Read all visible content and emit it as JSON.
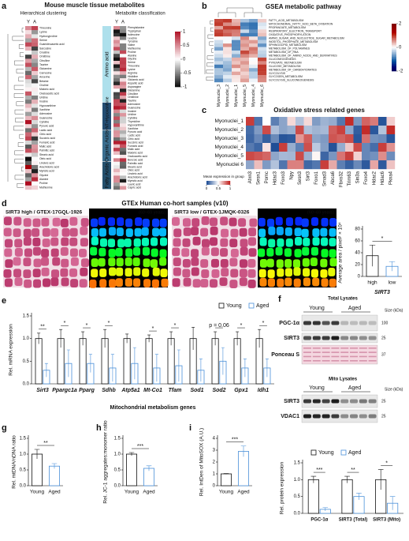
{
  "panel_labels": [
    "a",
    "b",
    "c",
    "d",
    "e",
    "f",
    "g",
    "h",
    "i"
  ],
  "panel_a": {
    "title": "Mouse muscle tissue metabolites",
    "left_heading": "Hierarchical clustering",
    "right_heading": "Metabolite classification",
    "columns": [
      "Y",
      "A"
    ],
    "colorbar_ticks": [
      1,
      0.5,
      0,
      -0.5,
      -1
    ],
    "left_names": [
      "Threonine",
      "Lysine",
      "Hydroxyproline",
      "Serine",
      "Guanidinoacetic acid",
      "Sarcosine",
      "Creatine",
      "Ornithine",
      "Citrulline",
      "Taurine",
      "Glutamine",
      "Carnosine",
      "Anserine",
      "Betaine",
      "Choline",
      "Malonic acid",
      "Oxaloacetic acid",
      "Uridine",
      "Inosine",
      "Hypoxanthine",
      "Xanthine",
      "Adenosine",
      "Guanosine",
      "Cytidine",
      "Pyruvic acid",
      "Lactic acid",
      "Citric acid",
      "Succinic acid",
      "Fumaric acid",
      "Malic acid",
      "Palmitic acid",
      "Stearic acid",
      "Oleic acid",
      "Linoleic acid",
      "Arachidonic acid",
      "Myristic acid",
      "Glycine",
      "Alanine",
      "Proline",
      "Methionine"
    ],
    "categories": [
      {
        "name": "Amino acid",
        "names": [
          "Phenylalanine",
          "Tryptophan",
          "Isoleucine",
          "Leucine",
          "Tyrosine",
          "Valine",
          "Methionine",
          "Proline",
          "Alanine",
          "Glycine",
          "Serine",
          "Threonine",
          "Lysine",
          "Arginine",
          "Histidine",
          "Glutamic acid",
          "Aspartic acid",
          "Asparagine",
          "Glutamine",
          "Citrulline",
          "Ornithine",
          "Taurine"
        ]
      },
      {
        "name": "NS+NT+Hypoxanthine",
        "names": [
          "Adenosine",
          "Guanosine",
          "Inosine",
          "Uridine",
          "Cytidine",
          "Thymidine",
          "Hypoxanthine",
          "Xanthine"
        ]
      },
      {
        "name": "Organic Acids",
        "names": [
          "Pyruvic acid",
          "Lactic acid",
          "Citric acid",
          "Succinic acid",
          "Fumaric acid",
          "Malic acid",
          "Malonic acid",
          "Oxaloacetic acid",
          "Benzoic acid"
        ]
      },
      {
        "name": "Fatty Acids",
        "names": [
          "Palmitic acid",
          "Stearic acid",
          "Oleic acid",
          "Linoleic acid",
          "Arachidonic acid",
          "Myristic acid",
          "Lauric acid",
          "Capric acid"
        ]
      }
    ]
  },
  "panel_b": {
    "title": "GSEA metabolic pathway",
    "pathways": [
      "FATTY_ACID_METABOLISM",
      "MITOCHONDRIAL_FATTY_ACID_BETA_OXIDATION",
      "PROPANOATE_METABOLISM",
      "RESPIRATORY_ELECTRON_TRANSPORT",
      "OXIDATIVE_PHOSPHORYLATION",
      "AMINO_SUGAR_AND_NUCLEOTIDE_SUGAR_METABOLISM",
      "INOSITOL_PHOSPHATE_METABOLISM",
      "SPHINGOLIPID_METABOLISM",
      "METABOLISM_OF_POLYAMINES",
      "METABOLISM_OF_RNA",
      "METABOLISM_OF_AMINO_ACIDS_AND_DERIVATIVES",
      "GLUCONEOGENESIS",
      "PYRUVATE_METABOLISM",
      "GLUCOSE_METABOLISM",
      "METABOLISM_OF_CARBOHYDRATES",
      "GLYCOLYSIS",
      "GLYCOGEN_METABOLISM",
      "GLYCOLYSIS_GLUCONEOGENESIS"
    ],
    "columns": [
      "Myonuclei_3",
      "Myonuclei_2",
      "Myonuclei_1",
      "Myonuclei_5",
      "Myonuclei_4",
      "Myonuclei_6"
    ],
    "colorbar_ticks": [
      2,
      0,
      -2
    ]
  },
  "panel_c": {
    "title": "Oxidative stress related genes",
    "rows": [
      "Myonuclei_1",
      "Myonuclei_2",
      "Myonuclei_3",
      "Myonuclei_4",
      "Myonuclei_5",
      "Myonuclei 6"
    ],
    "genes": [
      "Atxn3",
      "Sesn1",
      "Pomc",
      "Hdac3",
      "Foxo3",
      "Npy",
      "Sesn3",
      "Sirt3",
      "Foxo1",
      "Smad3",
      "Abca6",
      "Fbxo32",
      "Trim63",
      "Sin3a",
      "Foxo4",
      "Hdac2",
      "Hdac6",
      "Pkna4"
    ],
    "legend_title": "Mean expression in group",
    "colorbar_ticks": [
      0,
      0.5,
      1.0
    ]
  },
  "panel_d": {
    "title": "GTEx Human co-hort samples (v10)",
    "high_caption": "SIRT3 high / GTEX-17GQL-1926",
    "low_caption": "SIRT3 low / GTEX-1JMQK-0326",
    "age": "(60~69 years)"
  },
  "panel_f": {
    "total_title": "Total Lysates",
    "mito_title": "Mito Lysates",
    "groups": [
      "Young",
      "Aged"
    ],
    "size_heading": "Size (kDa)",
    "total_rows": [
      {
        "name": "PGC-1α",
        "size": "100"
      },
      {
        "name": "SIRT3",
        "size": "25"
      },
      {
        "name": "Ponceau S",
        "size": "37"
      }
    ],
    "mito_rows": [
      {
        "name": "SIRT3",
        "size": "25"
      },
      {
        "name": "VDAC1",
        "size": "25"
      }
    ]
  },
  "chart_data": [
    {
      "type": "bar",
      "ylabel": "Average area / pixel² × 10⁴",
      "categories": [
        "high",
        "low"
      ],
      "xlabel": "SIRT3",
      "values": [
        35,
        17
      ],
      "errors": [
        18,
        8
      ],
      "colors": [
        "#111111",
        "#4a90d9"
      ],
      "ylim": [
        0,
        80
      ],
      "yticks": [
        0,
        20,
        40,
        60,
        80
      ],
      "significance": "*"
    },
    {
      "type": "bar",
      "ylabel": "Rel. mRNA expression",
      "xlabel": "Mitochondrial metabolism genes",
      "categories": [
        "Sirt3",
        "Ppargc1a",
        "Pparg",
        "Sdhb",
        "Atp5a1",
        "Mt-Co1",
        "Tfam",
        "Sod1",
        "Sod2",
        "Gpx1",
        "Idh1"
      ],
      "category_style": "italic",
      "series": [
        {
          "name": "Young",
          "color": "#111111",
          "values": [
            1.0,
            1.0,
            1.0,
            1.0,
            1.0,
            1.0,
            1.0,
            1.0,
            1.0,
            1.0,
            1.0
          ],
          "errors": [
            0.12,
            0.2,
            0.15,
            0.2,
            0.1,
            0.08,
            0.15,
            0.25,
            0.15,
            0.15,
            0.2
          ]
        },
        {
          "name": "Aged",
          "color": "#4a90d9",
          "values": [
            0.3,
            0.45,
            0.45,
            0.35,
            0.45,
            0.35,
            0.4,
            0.3,
            0.5,
            0.35,
            0.35
          ],
          "errors": [
            0.15,
            0.3,
            0.2,
            0.3,
            0.35,
            0.3,
            0.35,
            0.25,
            0.3,
            0.2,
            0.2
          ]
        }
      ],
      "ylim": [
        0,
        1.5
      ],
      "yticks": [
        {
          "value": 0,
          "label": "0.0"
        },
        0.5,
        {
          "value": 1,
          "label": "1.0"
        },
        1.5
      ],
      "significance": [
        "**",
        "*",
        "*",
        "*",
        null,
        "*",
        "*",
        null,
        "p = 0.06",
        "*",
        "*"
      ],
      "legend": "top-right"
    },
    {
      "type": "bar",
      "ylabel": "Rel. protein expression",
      "categories": [
        "PGC-1α",
        "SIRT3 (Total)",
        "SIRT3 (Mito)"
      ],
      "series": [
        {
          "name": "Young",
          "color": "#111111",
          "values": [
            1.0,
            1.0,
            1.0
          ],
          "errors": [
            0.1,
            0.1,
            0.3
          ]
        },
        {
          "name": "Aged",
          "color": "#4a90d9",
          "values": [
            0.12,
            0.5,
            0.3
          ],
          "errors": [
            0.05,
            0.1,
            0.2
          ]
        }
      ],
      "ylim": [
        0,
        1.5
      ],
      "yticks": [
        {
          "value": 0,
          "label": "0.0"
        },
        0.5,
        {
          "value": 1,
          "label": "1.0"
        },
        1.5
      ],
      "significance": [
        "***",
        "**",
        "*"
      ],
      "legend": "top"
    },
    {
      "type": "bar",
      "ylabel": "Rel. mtDNA/nDNA ratio",
      "categories": [
        "Young",
        "Aged"
      ],
      "values": [
        1.0,
        0.62
      ],
      "errors": [
        0.15,
        0.08
      ],
      "colors": [
        "#111111",
        "#4a90d9"
      ],
      "ylim": [
        0,
        1.5
      ],
      "yticks": [
        {
          "value": 0,
          "label": "0.0"
        },
        0.5,
        {
          "value": 1,
          "label": "1.0"
        },
        1.5
      ],
      "significance": "**"
    },
    {
      "type": "bar",
      "ylabel": "Rel. JC-1 aggregates:monomer ratio",
      "categories": [
        "Young",
        "Aged"
      ],
      "values": [
        1.0,
        0.55
      ],
      "errors": [
        0.05,
        0.08
      ],
      "colors": [
        "#111111",
        "#4a90d9"
      ],
      "ylim": [
        0,
        1.5
      ],
      "yticks": [
        {
          "value": 0,
          "label": "0.0"
        },
        0.5,
        {
          "value": 1,
          "label": "1.0"
        },
        1.5
      ],
      "significance": "***"
    },
    {
      "type": "bar",
      "ylabel": "Rel. IntDen of MitoSOX (A.U.)",
      "categories": [
        "Young",
        "Aged"
      ],
      "values": [
        1.0,
        2.9
      ],
      "errors": [
        0.03,
        0.45
      ],
      "colors": [
        "#111111",
        "#4a90d9"
      ],
      "ylim": [
        0,
        4
      ],
      "yticks": [
        0,
        1,
        2,
        3,
        4
      ],
      "significance": "***"
    }
  ]
}
